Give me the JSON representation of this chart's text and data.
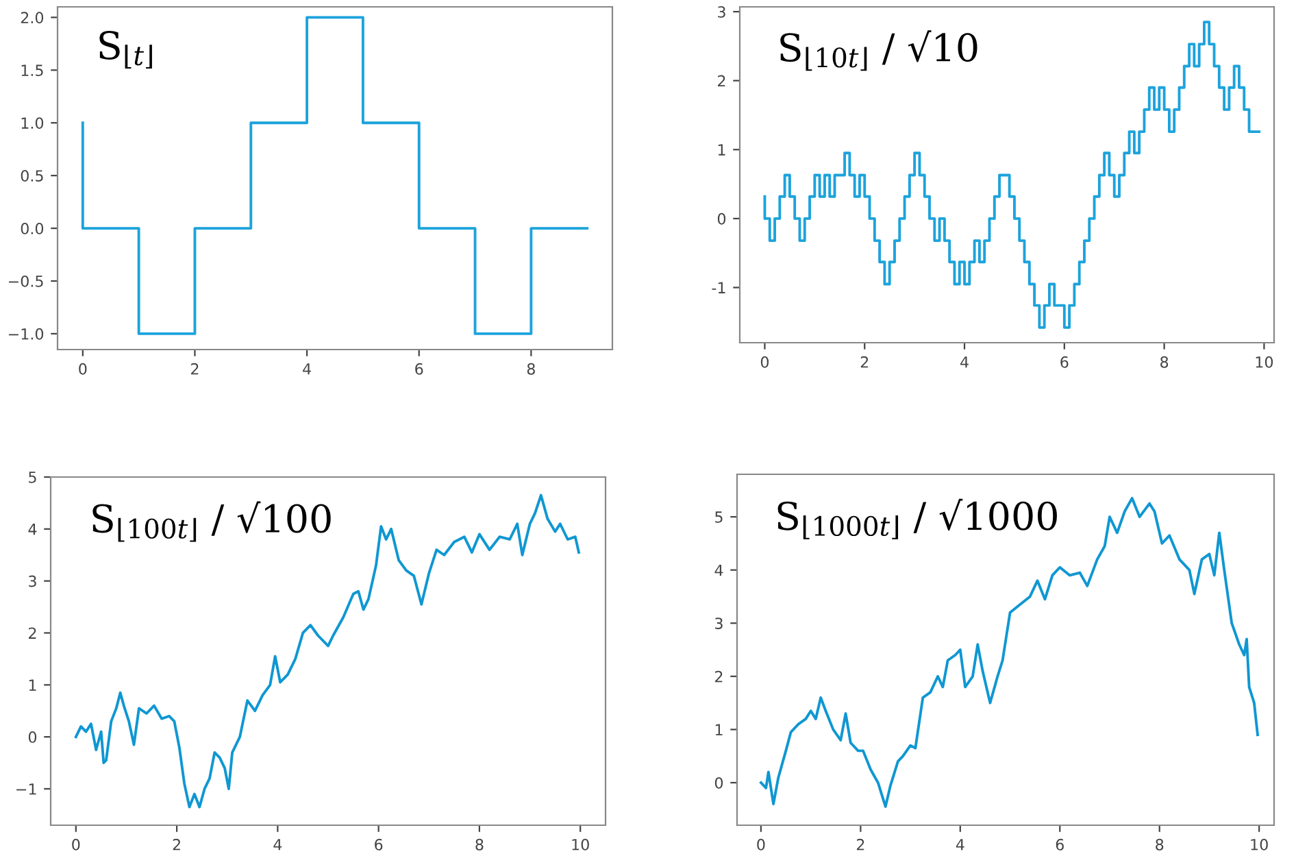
{
  "chart_data": [
    {
      "type": "step",
      "title": "S$_{⌊t⌋}$",
      "x": [
        0,
        1,
        2,
        3,
        4,
        5,
        6,
        7,
        8,
        9
      ],
      "series": [
        {
          "color": "#1ca3dc",
          "values": [
            1,
            0,
            -1,
            0,
            1,
            2,
            1,
            0,
            -1,
            0
          ]
        }
      ],
      "xlim": [
        -0.45,
        9.45
      ],
      "ylim": [
        -1.15,
        2.1
      ],
      "xticks": [
        0,
        2,
        4,
        6,
        8
      ],
      "yticks": [
        {
          "value": -1,
          "label": "−1.0"
        },
        {
          "value": -0.5,
          "label": "−0.5"
        },
        {
          "value": 0,
          "label": "0.0"
        },
        {
          "value": 0.5,
          "label": "0.5"
        },
        {
          "value": 1,
          "label": "1.0"
        },
        {
          "value": 1.5,
          "label": "1.5"
        },
        {
          "value": 2,
          "label": "2.0"
        }
      ],
      "grid": false
    },
    {
      "type": "step",
      "title": "S$_{⌊10t⌋}$ / √10",
      "x": [
        0,
        0.1,
        0.2,
        0.3,
        0.4,
        0.5,
        0.6,
        0.7,
        0.8,
        0.9,
        1,
        1.1,
        1.2,
        1.3,
        1.4,
        1.5,
        1.6,
        1.7,
        1.8,
        1.9,
        2,
        2.1,
        2.2,
        2.3,
        2.4,
        2.5,
        2.6,
        2.7,
        2.8,
        2.9,
        3,
        3.1,
        3.2,
        3.3,
        3.4,
        3.5,
        3.6,
        3.7,
        3.8,
        3.9,
        4,
        4.1,
        4.2,
        4.3,
        4.4,
        4.5,
        4.6,
        4.7,
        4.8,
        4.9,
        5,
        5.1,
        5.2,
        5.3,
        5.4,
        5.5,
        5.6,
        5.7,
        5.8,
        5.9,
        6,
        6.1,
        6.2,
        6.3,
        6.4,
        6.5,
        6.6,
        6.7,
        6.8,
        6.9,
        7,
        7.1,
        7.2,
        7.3,
        7.4,
        7.5,
        7.6,
        7.7,
        7.8,
        7.9,
        8,
        8.1,
        8.2,
        8.3,
        8.4,
        8.5,
        8.6,
        8.7,
        8.8,
        8.9,
        9,
        9.1,
        9.2,
        9.3,
        9.4,
        9.5,
        9.6,
        9.7,
        9.8,
        9.9
      ],
      "series": [
        {
          "color": "#1ca3dc",
          "values": [
            0.32,
            0,
            -0.32,
            0,
            0.32,
            0.63,
            0.32,
            0,
            -0.32,
            0,
            0.32,
            0.63,
            0.32,
            0.63,
            0.32,
            0.63,
            0.63,
            0.95,
            0.63,
            0.32,
            0.63,
            0.32,
            0,
            -0.32,
            -0.63,
            -0.95,
            -0.63,
            -0.32,
            0,
            0.32,
            0.63,
            0.95,
            0.63,
            0.32,
            0,
            -0.32,
            0,
            -0.32,
            -0.63,
            -0.95,
            -0.63,
            -0.95,
            -0.63,
            -0.32,
            -0.63,
            -0.32,
            0,
            0.32,
            0.63,
            0.63,
            0.32,
            0,
            -0.32,
            -0.63,
            -0.95,
            -1.26,
            -1.58,
            -1.26,
            -0.95,
            -1.26,
            -1.26,
            -1.58,
            -1.26,
            -0.95,
            -0.63,
            -0.32,
            0,
            0.32,
            0.63,
            0.95,
            0.63,
            0.32,
            0.63,
            0.95,
            1.26,
            0.95,
            1.26,
            1.58,
            1.9,
            1.58,
            1.9,
            1.58,
            1.26,
            1.58,
            1.9,
            2.21,
            2.53,
            2.21,
            2.53,
            2.85,
            2.53,
            2.21,
            1.9,
            1.58,
            1.9,
            2.21,
            1.9,
            1.58,
            1.26,
            1.26
          ]
        }
      ],
      "xlim": [
        -0.5,
        10.2
      ],
      "ylim": [
        -1.8,
        3.07
      ],
      "xticks": [
        0,
        2,
        4,
        6,
        8,
        10
      ],
      "yticks": [
        -1,
        0,
        1,
        2,
        3
      ],
      "grid": false
    },
    {
      "type": "line",
      "title": "S$_{⌊100t⌋}$ / √100",
      "x": [
        0,
        0.1,
        0.2,
        0.3,
        0.4,
        0.5,
        0.55,
        0.6,
        0.7,
        0.8,
        0.88,
        0.95,
        1.05,
        1.15,
        1.25,
        1.4,
        1.55,
        1.7,
        1.85,
        1.95,
        2.05,
        2.15,
        2.25,
        2.35,
        2.45,
        2.55,
        2.65,
        2.75,
        2.85,
        2.95,
        3.03,
        3.1,
        3.25,
        3.4,
        3.55,
        3.7,
        3.85,
        3.95,
        4.05,
        4.2,
        4.35,
        4.5,
        4.65,
        4.8,
        5.0,
        5.1,
        5.3,
        5.5,
        5.6,
        5.7,
        5.8,
        5.95,
        6.05,
        6.15,
        6.25,
        6.4,
        6.55,
        6.7,
        6.85,
        7.0,
        7.15,
        7.3,
        7.5,
        7.7,
        7.85,
        8.0,
        8.2,
        8.4,
        8.6,
        8.75,
        8.85,
        9.0,
        9.1,
        9.22,
        9.35,
        9.5,
        9.6,
        9.75,
        9.9,
        9.97
      ],
      "series": [
        {
          "color": "#0f97d2",
          "values": [
            0,
            0.2,
            0.1,
            0.25,
            -0.25,
            0.1,
            -0.5,
            -0.45,
            0.3,
            0.55,
            0.85,
            0.6,
            0.3,
            -0.15,
            0.55,
            0.45,
            0.6,
            0.35,
            0.4,
            0.3,
            -0.2,
            -0.9,
            -1.35,
            -1.1,
            -1.35,
            -1.0,
            -0.8,
            -0.3,
            -0.4,
            -0.6,
            -1.0,
            -0.3,
            0.0,
            0.7,
            0.5,
            0.8,
            1.0,
            1.55,
            1.05,
            1.2,
            1.5,
            2.0,
            2.15,
            1.95,
            1.75,
            1.95,
            2.3,
            2.75,
            2.8,
            2.45,
            2.65,
            3.3,
            4.05,
            3.8,
            4.0,
            3.4,
            3.2,
            3.1,
            2.55,
            3.15,
            3.6,
            3.5,
            3.75,
            3.85,
            3.55,
            3.9,
            3.6,
            3.85,
            3.8,
            4.1,
            3.5,
            4.1,
            4.3,
            4.65,
            4.2,
            3.95,
            4.1,
            3.8,
            3.85,
            3.55
          ]
        }
      ],
      "xlim": [
        -0.5,
        10.5
      ],
      "ylim": [
        -1.7,
        5.0
      ],
      "xticks": [
        0,
        2,
        4,
        6,
        8,
        10
      ],
      "yticks": [
        {
          "value": -1,
          "label": "−1"
        },
        0,
        1,
        2,
        3,
        4,
        5
      ],
      "grid": false
    },
    {
      "type": "line",
      "title": "S$_{⌊1000t⌋}$ / √1000",
      "x": [
        0,
        0.1,
        0.15,
        0.25,
        0.35,
        0.5,
        0.6,
        0.75,
        0.9,
        1.0,
        1.1,
        1.2,
        1.3,
        1.45,
        1.6,
        1.7,
        1.8,
        1.95,
        2.05,
        2.2,
        2.35,
        2.5,
        2.6,
        2.75,
        2.85,
        3.0,
        3.1,
        3.25,
        3.4,
        3.55,
        3.65,
        3.75,
        3.9,
        4.0,
        4.1,
        4.25,
        4.35,
        4.45,
        4.6,
        4.75,
        4.85,
        5.0,
        5.2,
        5.4,
        5.55,
        5.7,
        5.85,
        6.0,
        6.2,
        6.4,
        6.55,
        6.75,
        6.9,
        7.0,
        7.15,
        7.3,
        7.45,
        7.6,
        7.8,
        7.9,
        8.05,
        8.2,
        8.4,
        8.6,
        8.7,
        8.85,
        9.0,
        9.1,
        9.2,
        9.3,
        9.45,
        9.6,
        9.7,
        9.75,
        9.8,
        9.9,
        9.97
      ],
      "series": [
        {
          "color": "#0f97d2",
          "values": [
            0,
            -0.1,
            0.2,
            -0.4,
            0.1,
            0.6,
            0.95,
            1.1,
            1.2,
            1.35,
            1.2,
            1.6,
            1.35,
            1.0,
            0.8,
            1.3,
            0.75,
            0.6,
            0.6,
            0.25,
            0.0,
            -0.45,
            -0.05,
            0.4,
            0.5,
            0.7,
            0.65,
            1.6,
            1.7,
            2.0,
            1.8,
            2.3,
            2.4,
            2.5,
            1.8,
            2.0,
            2.6,
            2.1,
            1.5,
            2.0,
            2.3,
            3.2,
            3.35,
            3.5,
            3.8,
            3.45,
            3.9,
            4.05,
            3.9,
            3.95,
            3.7,
            4.2,
            4.45,
            5.0,
            4.7,
            5.1,
            5.35,
            5.0,
            5.25,
            5.1,
            4.5,
            4.65,
            4.2,
            4.0,
            3.55,
            4.2,
            4.3,
            3.9,
            4.7,
            4.0,
            3.0,
            2.6,
            2.4,
            2.7,
            1.8,
            1.5,
            0.9
          ]
        }
      ],
      "xlim": [
        -0.48,
        10.3
      ],
      "ylim": [
        -0.8,
        5.8
      ],
      "xticks": [
        0,
        2,
        4,
        6,
        8,
        10
      ],
      "yticks": [
        0,
        1,
        2,
        3,
        4,
        5
      ],
      "grid": false
    }
  ]
}
